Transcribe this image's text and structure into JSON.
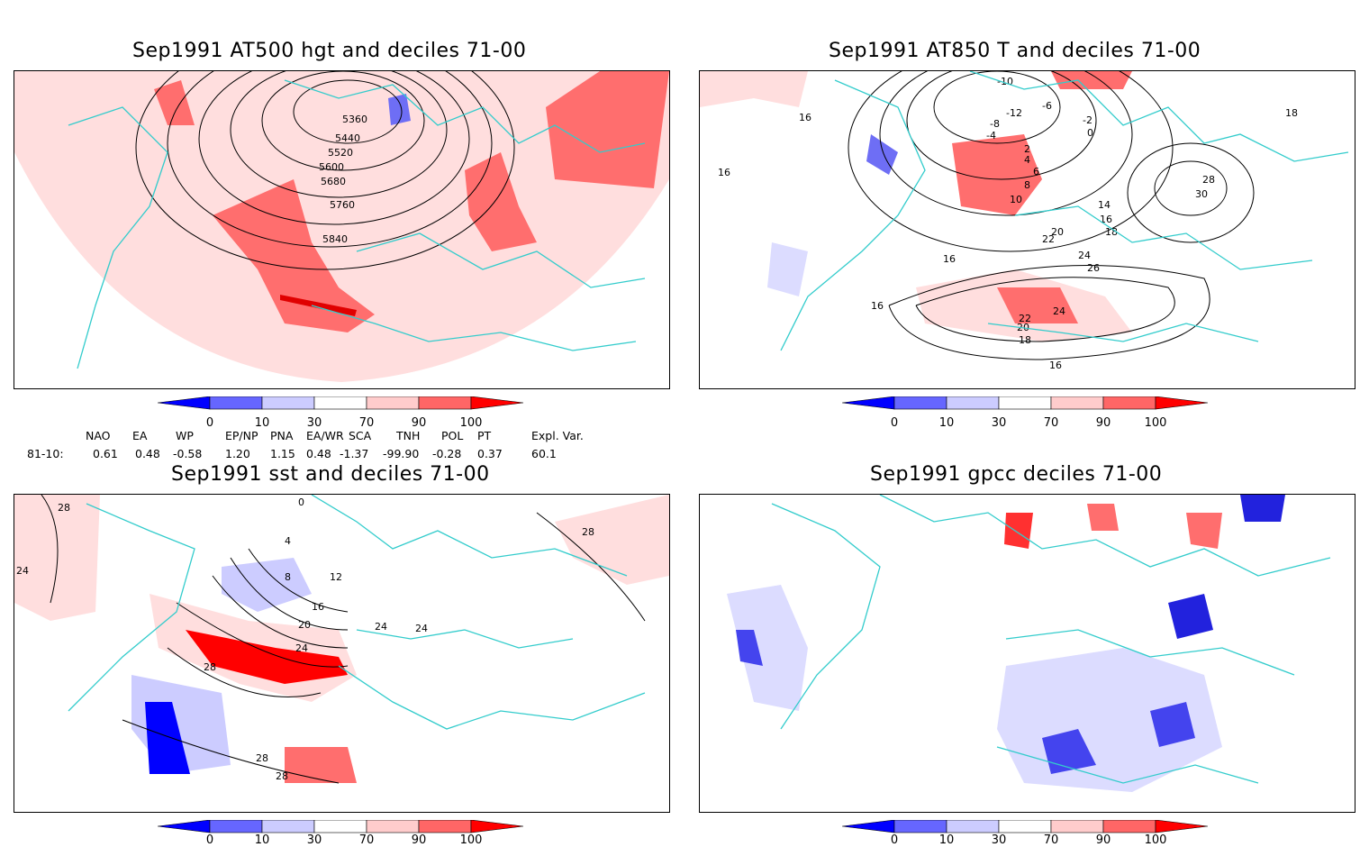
{
  "panels": [
    {
      "title": "Sep1991 AT500 hgt and deciles 71-00",
      "contour_labels": [
        "5360",
        "5440",
        "5520",
        "5600",
        "5680",
        "5760",
        "5840"
      ]
    },
    {
      "title": "Sep1991 AT850 T and deciles 71-00",
      "contour_labels": [
        "-10",
        "-12",
        "-8",
        "-6",
        "-4",
        "-2",
        "0",
        "2",
        "4",
        "6",
        "8",
        "10",
        "14",
        "16",
        "18",
        "20",
        "22",
        "24",
        "26",
        "28",
        "30",
        "16",
        "16",
        "18",
        "16",
        "16",
        "24",
        "22",
        "20",
        "18",
        "16"
      ]
    },
    {
      "title": "Sep1991 sst and deciles 71-00",
      "contour_labels": [
        "28",
        "24",
        "0",
        "4",
        "8",
        "12",
        "16",
        "20",
        "24",
        "28",
        "24",
        "24",
        "28",
        "28",
        "28"
      ]
    },
    {
      "title": "Sep1991 gpcc deciles 71-00",
      "contour_labels": []
    }
  ],
  "colorbar": {
    "labels": [
      "0",
      "10",
      "30",
      "70",
      "90",
      "100"
    ],
    "colors": [
      "#0000ff",
      "#6666ff",
      "#ccccff",
      "#ffffff",
      "#ffcccc",
      "#ff6666",
      "#ff0000"
    ]
  },
  "indices": {
    "headers": [
      "NAO",
      "EA",
      "WP",
      "EP/NP",
      "PNA",
      "EA/WR",
      "SCA",
      "TNH",
      "POL",
      "PT",
      "Expl. Var."
    ],
    "row_label": "81-10:",
    "values": [
      "0.61",
      "0.48",
      "-0.58",
      "1.20",
      "1.15",
      "0.48",
      "-1.37",
      "-99.90",
      "-0.28",
      "0.37",
      "60.1"
    ]
  },
  "colors": {
    "coast": "#33cccc",
    "contour": "#000000",
    "grid": "#999999"
  }
}
